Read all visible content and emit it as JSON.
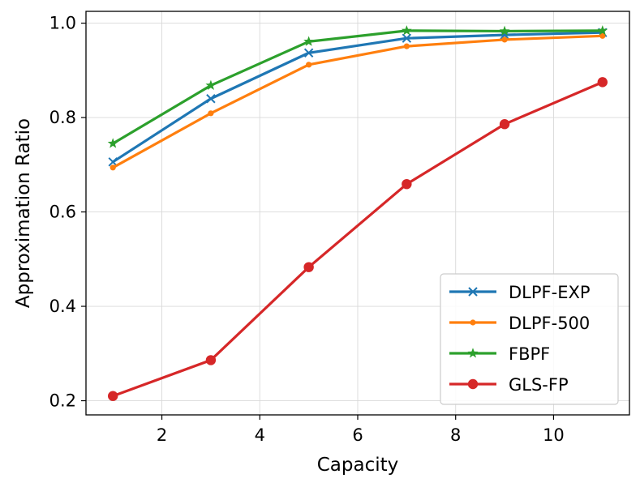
{
  "chart_data": {
    "type": "line",
    "title": "",
    "xlabel": "Capacity",
    "ylabel": "Approximation Ratio",
    "x": [
      1,
      3,
      5,
      7,
      9,
      11
    ],
    "xlim": [
      0.45,
      11.55
    ],
    "ylim": [
      0.17,
      1.025
    ],
    "xticks": [
      2,
      4,
      6,
      8,
      10
    ],
    "yticks": [
      0.2,
      0.4,
      0.6,
      0.8,
      1.0
    ],
    "xtick_labels": [
      "2",
      "4",
      "6",
      "8",
      "10"
    ],
    "ytick_labels": [
      "0.2",
      "0.4",
      "0.6",
      "0.8",
      "1.0"
    ],
    "grid": true,
    "legend_position": "lower-right",
    "series": [
      {
        "name": "DLPF-EXP",
        "color": "#1f77b4",
        "marker": "x",
        "values": [
          0.706,
          0.84,
          0.937,
          0.968,
          0.975,
          0.98
        ]
      },
      {
        "name": "DLPF-500",
        "color": "#ff7f0e",
        "marker": "dot",
        "values": [
          0.694,
          0.809,
          0.912,
          0.951,
          0.965,
          0.973
        ]
      },
      {
        "name": "FBPF",
        "color": "#2ca02c",
        "marker": "star",
        "values": [
          0.745,
          0.868,
          0.961,
          0.984,
          0.983,
          0.984
        ]
      },
      {
        "name": "GLS-FP",
        "color": "#d62728",
        "marker": "circle",
        "values": [
          0.21,
          0.286,
          0.483,
          0.659,
          0.786,
          0.875
        ]
      }
    ]
  }
}
